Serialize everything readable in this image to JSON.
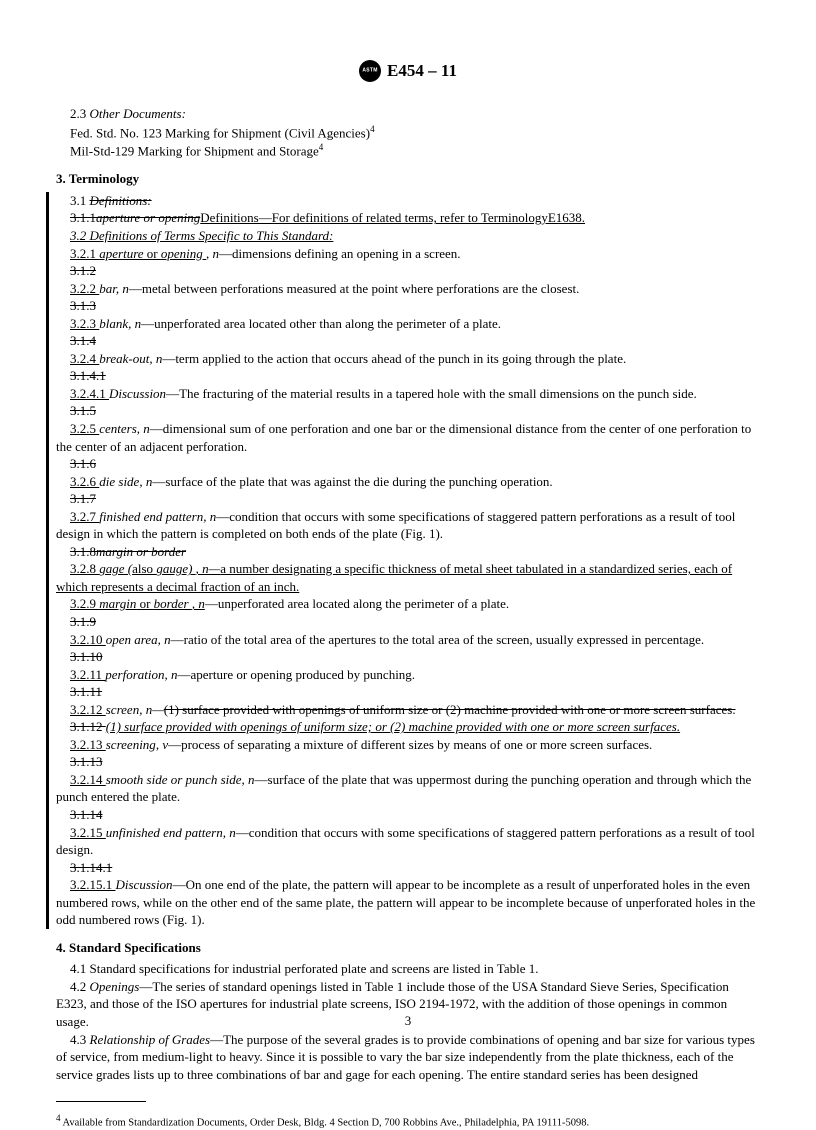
{
  "header": {
    "designation": "E454 – 11"
  },
  "s23_lead": "2.3 ",
  "s23_title": "Other Documents:",
  "fed_std": "Fed. Std. No. 123  Marking for Shipment (Civil Agencies)",
  "mil_std": "Mil-Std-129   Marking for Shipment and Storage",
  "sup4": "4",
  "sec3_title": "3.  Terminology",
  "s31_num": "3.1  ",
  "s31_strike": "Definitions:",
  "s311_strike": "3.1.1",
  "s311_strike2": "aperture or opening",
  "s311_underline": "Definitions—For definitions of related terms, refer to TerminologyE1638.",
  "s32_u": "3.2  Definitions of Terms Specific to This Standard:",
  "s321_num": "3.2.1  ",
  "s321_term": "aperture",
  "s321_or": " or ",
  "s321_term2": "opening ",
  "s321_pos": ", n",
  "s321_def": "—dimensions defining an opening in a screen.",
  "s312s": "3.1.2",
  "s322_num": "3.2.2  ",
  "s322_term": "bar",
  "s322_pos": ", n",
  "s322_def": "—metal between perforations measured at the point where perforations are the closest.",
  "s313s": "3.1.3",
  "s323_num": "3.2.3  ",
  "s323_term": "blank",
  "s323_pos": ", n",
  "s323_def": "—unperforated area located other than along the perimeter of a plate.",
  "s314s": "3.1.4",
  "s324_num": "3.2.4  ",
  "s324_term": "break-out",
  "s324_pos": ", n",
  "s324_def": "—term applied to the action that occurs ahead of the punch in its going through the plate.",
  "s3141s": "3.1.4.1",
  "s3241_num": "3.2.4.1  ",
  "s3241_term": "Discussion",
  "s3241_def": "—The fracturing of the material results in a tapered hole with the small dimensions on the punch side.",
  "s315s": "3.1.5",
  "s325_num": "3.2.5  ",
  "s325_term": "centers",
  "s325_pos": ", n",
  "s325_def": "—dimensional sum of one perforation and one bar or the dimensional distance from the center of one perforation to the center of an adjacent perforation.",
  "s316s": "3.1.6",
  "s326_num": "3.2.6  ",
  "s326_term": "die side",
  "s326_pos": ", n",
  "s326_def": "—surface of the plate that was against the die during the punching operation.",
  "s317s": "3.1.7",
  "s327_num": "3.2.7  ",
  "s327_term": "finished end pattern",
  "s327_pos": ", n",
  "s327_def": "—condition that occurs with some specifications of staggered pattern perforations as a result of tool design in which the pattern is completed on both ends of the plate (Fig. 1).",
  "s318s_a": "3.1.8",
  "s318s_b": "margin or border",
  "s328_num": "3.2.8  ",
  "s328_term": "gage (",
  "s328_also": "also ",
  "s328_term2": "gauge) ",
  "s328_pos": ", n—",
  "s328_def": "a number designating a specific thickness of metal sheet tabulated in a standardized series, each of which represents a decimal fraction of an inch.",
  "s329_num": "3.2.9  ",
  "s329_term": "margin",
  "s329_or": " or ",
  "s329_term2": "border ",
  "s329_pos": ", n",
  "s329_def": "—unperforated area located along the perimeter of a plate.",
  "s319s": "3.1.9",
  "s3210_num": "3.2.10  ",
  "s3210_term": "open area",
  "s3210_pos": ", n",
  "s3210_def": "—ratio of the total area of the apertures to the total area of the screen, usually expressed in percentage.",
  "s3110s": "3.1.10",
  "s3211_num": "3.2.11  ",
  "s3211_term": "perforation",
  "s3211_pos": ", n",
  "s3211_def": "—aperture or opening produced by punching.",
  "s3111s": "3.1.11",
  "s3212_num": "3.2.12  ",
  "s3212_term": "screen",
  "s3212_pos": ", n—",
  "s3212_strike": "(1) surface provided with openings of uniform size or (2) machine provided with one or more screen surfaces.",
  "s3112s": "3.1.12  ",
  "s3212_u": "(1) surface provided with openings of uniform size; or (2) machine provided with one or more screen surfaces.",
  "s3213_num": "3.2.13  ",
  "s3213_term": "screening",
  "s3213_pos": ", v",
  "s3213_def": "—process of separating a mixture of different sizes by means of one or more screen surfaces.",
  "s3113s": "3.1.13",
  "s3214_num": "3.2.14  ",
  "s3214_term": "smooth side or punch side",
  "s3214_pos": ", n",
  "s3214_def": "—surface of the plate that was uppermost during the punching operation and through which the punch entered the plate.",
  "s3114s": "3.1.14",
  "s3215_num": "3.2.15  ",
  "s3215_term": "unfinished end pattern",
  "s3215_pos": ", n",
  "s3215_def": "—condition that occurs with some specifications of staggered pattern perforations as a result of tool design.",
  "s31141s": "3.1.14.1",
  "s32151_num": "3.2.15.1  ",
  "s32151_term": "Discussion",
  "s32151_def": "—On one end of the plate, the pattern will appear to be incomplete as a result of unperforated holes in the even numbered rows, while on the other end of the same plate, the pattern will appear to be incomplete because of unperforated holes in the odd numbered rows (Fig. 1).",
  "sec4_title": "4.  Standard Specifications",
  "s41": "4.1  Standard specifications for industrial perforated plate and screens are listed in Table 1.",
  "s42_lead": "4.2  ",
  "s42_head": "Openings",
  "s42_body": "—The series of standard openings listed in Table 1 include those of the USA Standard Sieve Series, Specification E323, and those of the ISO apertures for industrial plate screens, ISO 2194-1972, with the addition of those openings in common usage.",
  "s43_lead": "4.3  ",
  "s43_head": "Relationship of Grades",
  "s43_body": "—The purpose of the several grades is to provide combinations of opening and bar size for various types of service, from medium-light to heavy. Since it is possible to vary the bar size independently from the plate thickness, each of the service grades lists up to three combinations of bar and gage for each opening. The entire standard series has been designed",
  "footnote": " Available from Standardization Documents, Order Desk, Bldg. 4 Section D, 700 Robbins Ave., Philadelphia, PA 19111-5098.",
  "page": "3"
}
